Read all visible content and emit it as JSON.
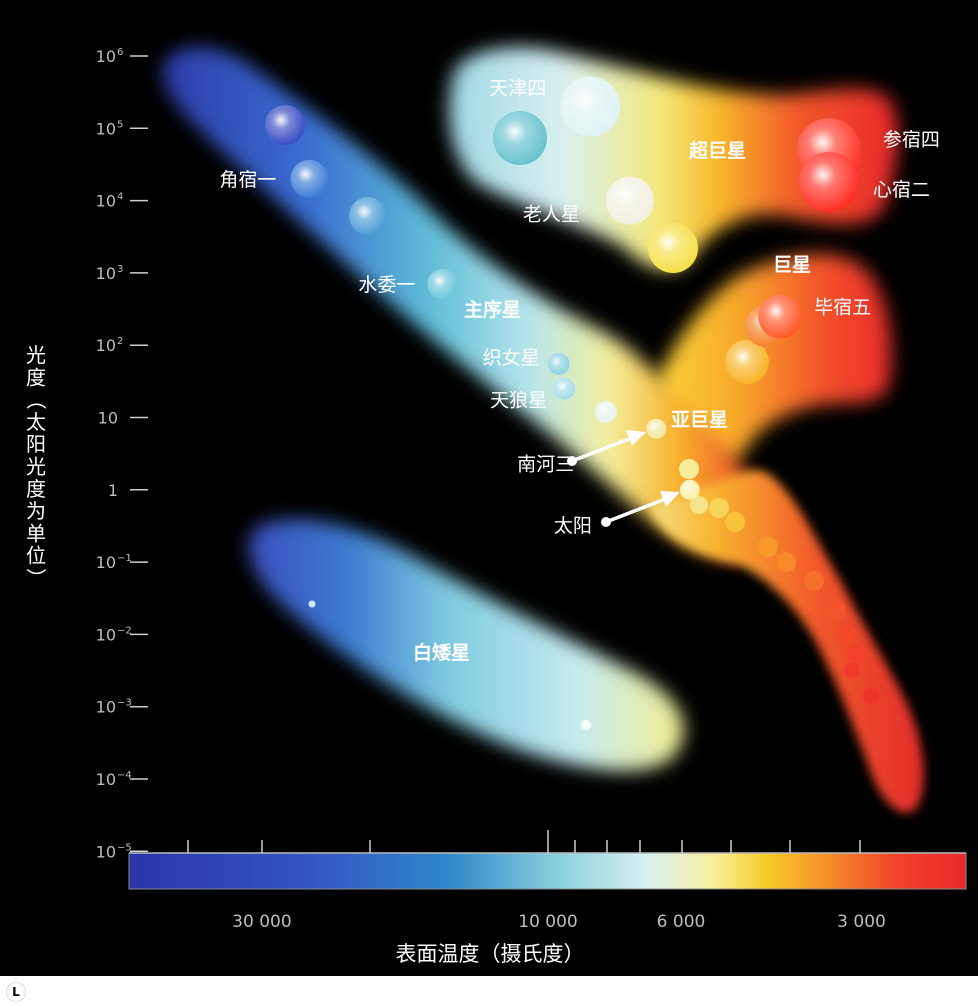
{
  "chart_data": {
    "type": "scatter",
    "title": "",
    "xlabel": "表面温度（摄氏度）",
    "ylabel_lines": [
      "光",
      "度",
      "（",
      "太",
      "阳",
      "光",
      "度",
      "为",
      "单",
      "位",
      "）"
    ],
    "x_scale": "log",
    "x_reversed": true,
    "x_ticks": [
      {
        "value": 30000,
        "label": "30 000"
      },
      {
        "value": 10000,
        "label": "10 000"
      },
      {
        "value": 6000,
        "label": "6 000"
      },
      {
        "value": 3000,
        "label": "3 000"
      }
    ],
    "y_scale": "log",
    "y_ticks": [
      {
        "exp": 6,
        "label": "10",
        "sup": "6"
      },
      {
        "exp": 5,
        "label": "10",
        "sup": "5"
      },
      {
        "exp": 4,
        "label": "10",
        "sup": "4"
      },
      {
        "exp": 3,
        "label": "10",
        "sup": "3"
      },
      {
        "exp": 2,
        "label": "10",
        "sup": "2"
      },
      {
        "exp": 1,
        "label": "10",
        "sup": ""
      },
      {
        "exp": 0,
        "label": "1",
        "sup": ""
      },
      {
        "exp": -1,
        "label": "10",
        "sup": "−1"
      },
      {
        "exp": -2,
        "label": "10",
        "sup": "−2"
      },
      {
        "exp": -3,
        "label": "10",
        "sup": "−3"
      },
      {
        "exp": -4,
        "label": "10",
        "sup": "−4"
      },
      {
        "exp": -5,
        "label": "10",
        "sup": "−5"
      }
    ],
    "region_labels": {
      "supergiants": "超巨星",
      "giants": "巨星",
      "main_sequence": "主序星",
      "subgiants": "亚巨星",
      "white_dwarfs": "白矮星"
    },
    "named_stars": [
      {
        "name": "天津四",
        "temp": 8500,
        "lum": 200000,
        "color": "#dff3f4"
      },
      {
        "name": "角宿一",
        "temp": 25000,
        "lum": 20000,
        "color": "#3f7fd6"
      },
      {
        "name": "老人星",
        "temp": 7300,
        "lum": 10000,
        "color": "#f2f1e0"
      },
      {
        "name": "参宿四",
        "temp": 3400,
        "lum": 50000,
        "color": "#ff3a2a"
      },
      {
        "name": "心宿二",
        "temp": 3400,
        "lum": 18000,
        "color": "#ff2f24"
      },
      {
        "name": "水委一",
        "temp": 15000,
        "lum": 700,
        "color": "#6fc8dc"
      },
      {
        "name": "织女星",
        "temp": 9600,
        "lum": 55,
        "color": "#8fd3e3"
      },
      {
        "name": "天狼星",
        "temp": 9400,
        "lum": 25,
        "color": "#a5dde8"
      },
      {
        "name": "毕宿五",
        "temp": 4100,
        "lum": 250,
        "color": "#ff5a2a"
      },
      {
        "name": "南河三",
        "temp": 6600,
        "lum": 7,
        "color": "#f3e9a0"
      },
      {
        "name": "太阳",
        "temp": 5800,
        "lum": 1,
        "color": "#fff1a8"
      }
    ]
  }
}
